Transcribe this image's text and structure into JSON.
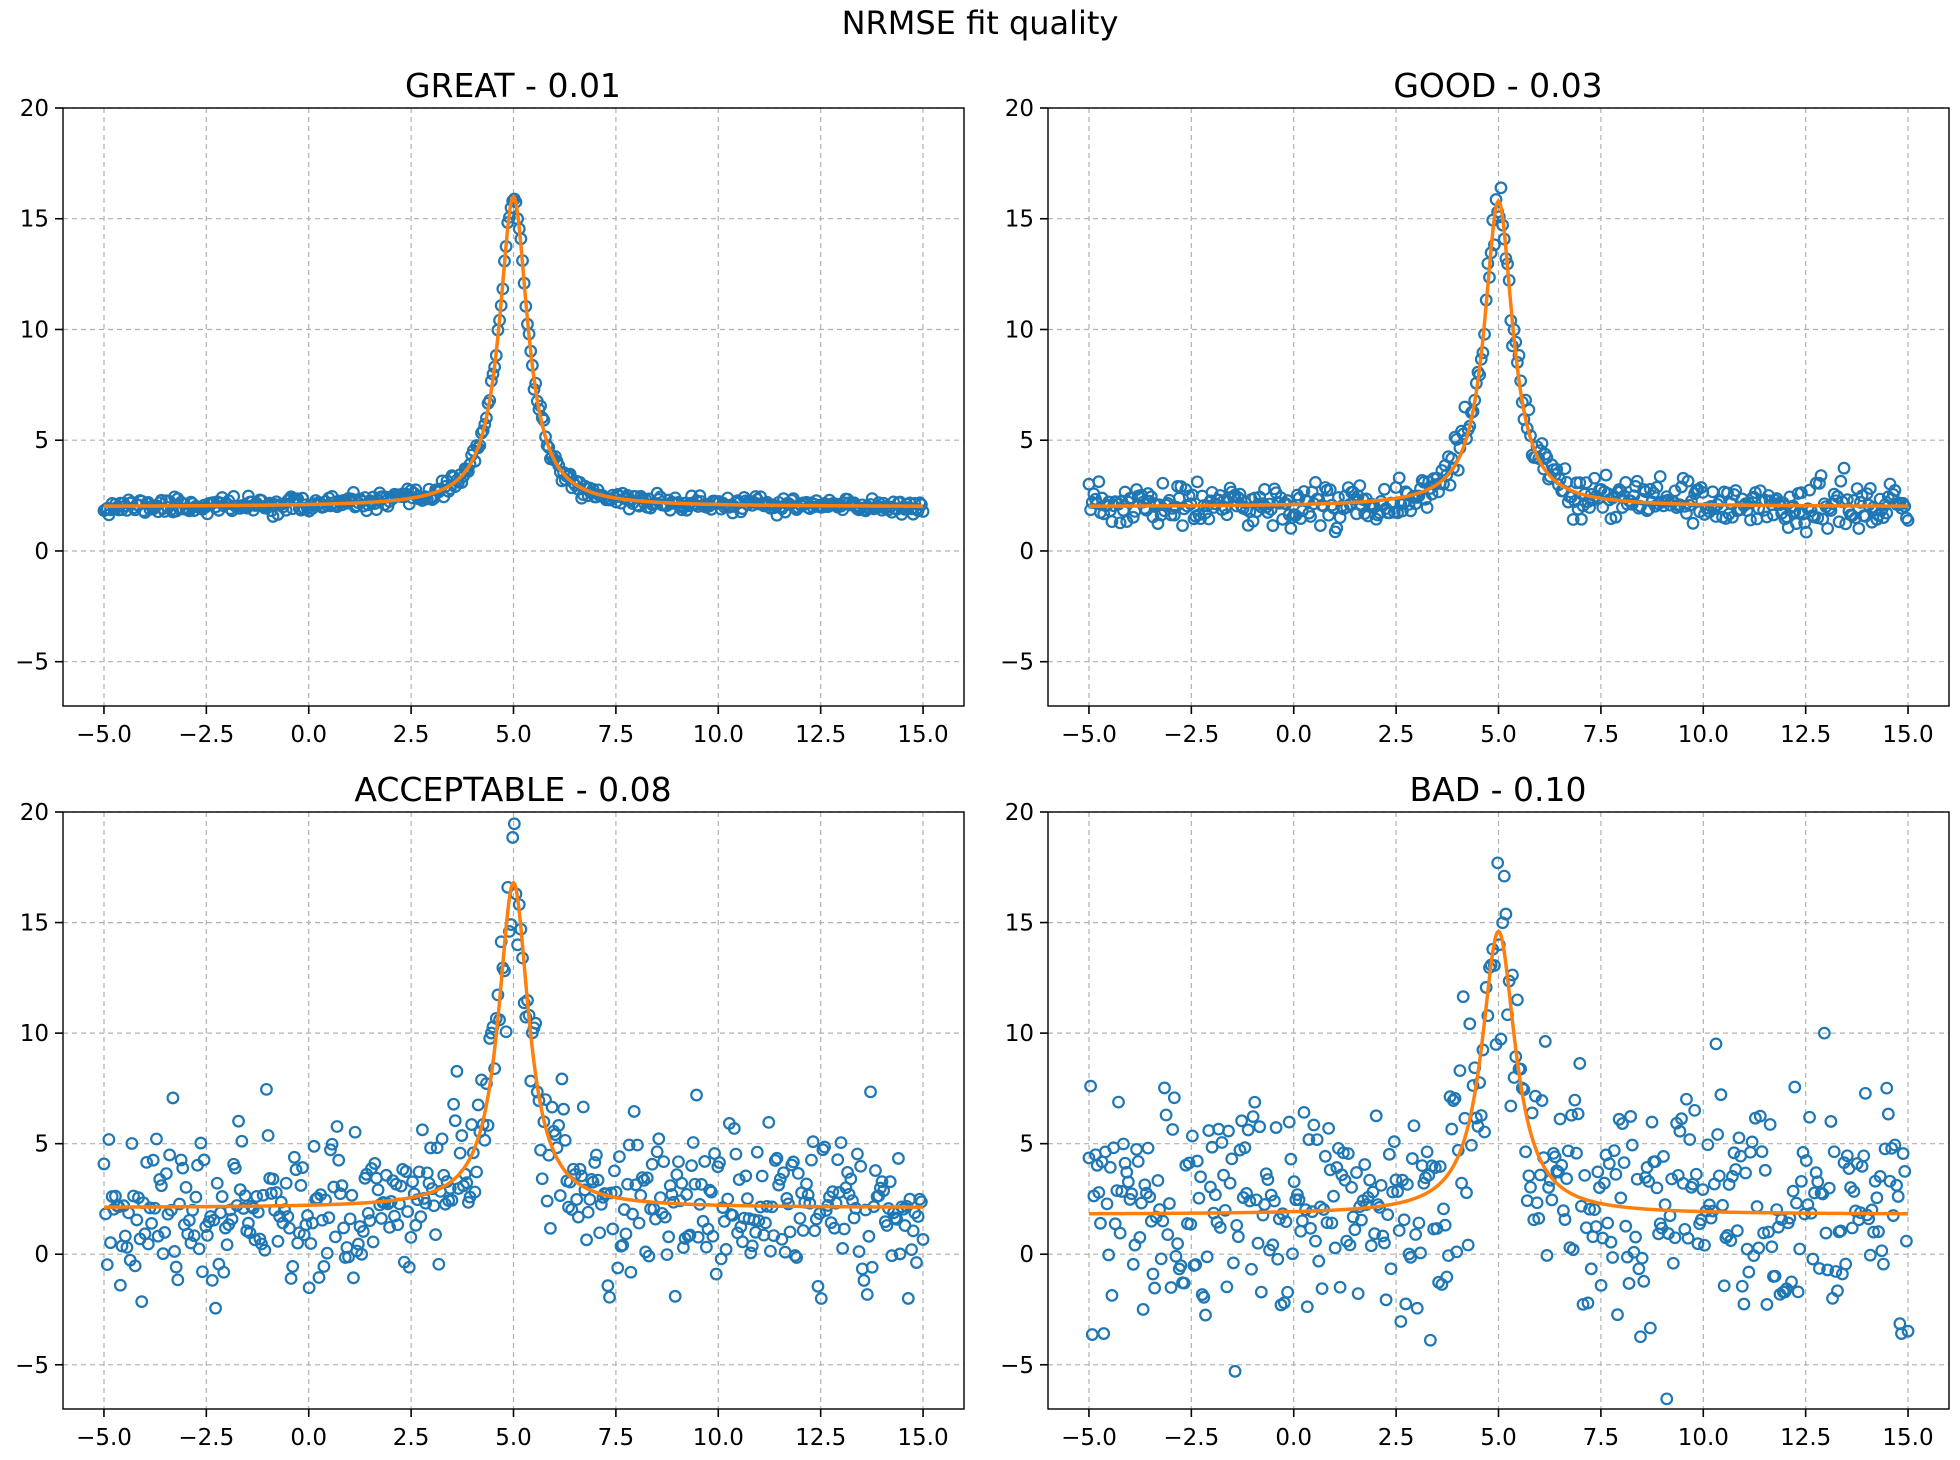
{
  "figure": {
    "title": "NRMSE fit quality"
  },
  "colors": {
    "data": "#1f77b4",
    "fit": "#ff7f0e"
  },
  "chart_data": [
    {
      "type": "scatter",
      "title": "GREAT - 0.01",
      "xlim": [
        -6.0,
        16.0
      ],
      "ylim": [
        -7,
        20
      ],
      "xticks": [
        "−5.0",
        "−2.5",
        "0.0",
        "2.5",
        "5.0",
        "7.5",
        "10.0",
        "12.5",
        "15.0"
      ],
      "yticks": [
        "−5",
        "0",
        "5",
        "10",
        "15",
        "20"
      ],
      "grid": true,
      "model": {
        "kind": "lorentzian",
        "center": 5.0,
        "hwhm": 0.42,
        "peak": 16.0,
        "baseline": 2.0
      },
      "series": [
        {
          "kind": "markers",
          "n_points": 500,
          "x_range": [
            -5,
            15
          ],
          "noise_sd": 0.18,
          "seed": 11
        },
        {
          "kind": "fit_line"
        }
      ]
    },
    {
      "type": "scatter",
      "title": "GOOD - 0.03",
      "xlim": [
        -6.0,
        16.0
      ],
      "ylim": [
        -7,
        20
      ],
      "xticks": [
        "−5.0",
        "−2.5",
        "0.0",
        "2.5",
        "5.0",
        "7.5",
        "10.0",
        "12.5",
        "15.0"
      ],
      "yticks": [
        "−5",
        "0",
        "5",
        "10",
        "15",
        "20"
      ],
      "grid": true,
      "model": {
        "kind": "lorentzian",
        "center": 5.0,
        "hwhm": 0.42,
        "peak": 15.8,
        "baseline": 2.0
      },
      "series": [
        {
          "kind": "markers",
          "n_points": 500,
          "x_range": [
            -5,
            15
          ],
          "noise_sd": 0.5,
          "seed": 23
        },
        {
          "kind": "fit_line"
        }
      ]
    },
    {
      "type": "scatter",
      "title": "ACCEPTABLE - 0.08",
      "xlim": [
        -6.0,
        16.0
      ],
      "ylim": [
        -7,
        20
      ],
      "xticks": [
        "−5.0",
        "−2.5",
        "0.0",
        "2.5",
        "5.0",
        "7.5",
        "10.0",
        "12.5",
        "15.0"
      ],
      "yticks": [
        "−5",
        "0",
        "5",
        "10",
        "15",
        "20"
      ],
      "grid": true,
      "model": {
        "kind": "lorentzian",
        "center": 5.0,
        "hwhm": 0.45,
        "peak": 16.8,
        "baseline": 2.1
      },
      "series": [
        {
          "kind": "markers",
          "n_points": 500,
          "x_range": [
            -5,
            15
          ],
          "noise_sd": 1.7,
          "seed": 37
        },
        {
          "kind": "fit_line"
        }
      ]
    },
    {
      "type": "scatter",
      "title": "BAD - 0.10",
      "xlim": [
        -6.0,
        16.0
      ],
      "ylim": [
        -7,
        20
      ],
      "xticks": [
        "−5.0",
        "−2.5",
        "0.0",
        "2.5",
        "5.0",
        "7.5",
        "10.0",
        "12.5",
        "15.0"
      ],
      "yticks": [
        "−5",
        "0",
        "5",
        "10",
        "15",
        "20"
      ],
      "grid": true,
      "model": {
        "kind": "lorentzian",
        "center": 5.0,
        "hwhm": 0.5,
        "peak": 14.6,
        "baseline": 1.8
      },
      "series": [
        {
          "kind": "markers",
          "n_points": 500,
          "x_range": [
            -5,
            15
          ],
          "noise_sd": 2.5,
          "seed": 53
        },
        {
          "kind": "fit_line"
        }
      ]
    }
  ]
}
